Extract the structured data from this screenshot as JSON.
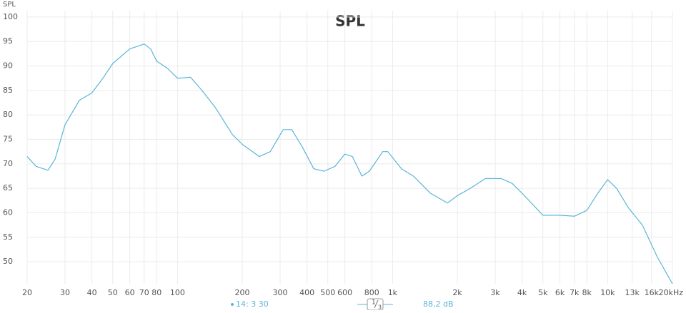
{
  "chart_data": {
    "type": "line",
    "title": "SPL",
    "y_label": "SPL",
    "x_scale": "log",
    "grid": true,
    "x": [
      20,
      22,
      25,
      27,
      30,
      35,
      40,
      45,
      50,
      60,
      65,
      70,
      75,
      80,
      90,
      100,
      115,
      130,
      150,
      180,
      200,
      240,
      270,
      310,
      340,
      380,
      430,
      480,
      540,
      600,
      650,
      720,
      780,
      900,
      950,
      1100,
      1250,
      1500,
      1800,
      2000,
      2300,
      2700,
      3200,
      3600,
      4000,
      5000,
      6000,
      7000,
      8000,
      9000,
      10000,
      11000,
      12500,
      14500,
      17000,
      20000
    ],
    "series": [
      {
        "name": "SPL",
        "color": "#5bb5d8",
        "values": [
          71.5,
          69.5,
          68.7,
          71,
          78,
          83,
          84.5,
          87.5,
          90.5,
          93.5,
          94,
          94.5,
          93.5,
          91,
          89.5,
          87.5,
          87.7,
          85,
          81.5,
          76,
          74,
          71.5,
          72.5,
          77,
          77,
          73.5,
          69,
          68.5,
          69.5,
          72,
          71.5,
          67.5,
          68.5,
          72.5,
          72.5,
          69,
          67.5,
          64,
          62,
          63.5,
          65,
          67,
          67,
          66,
          64,
          59.5,
          59.5,
          59.3,
          60.5,
          64,
          66.8,
          65,
          61,
          57.5,
          51,
          45.5
        ]
      }
    ],
    "xlim": [
      20,
      20000
    ],
    "ylim": [
      45.5,
      101.3
    ],
    "xticks": [
      20,
      30,
      40,
      50,
      60,
      70,
      80,
      100,
      200,
      300,
      400,
      500,
      600,
      800,
      {
        "value": 1000,
        "label": "1k"
      },
      {
        "value": 2000,
        "label": "2k"
      },
      {
        "value": 3000,
        "label": "3k"
      },
      {
        "value": 4000,
        "label": "4k"
      },
      {
        "value": 5000,
        "label": "5k"
      },
      {
        "value": 6000,
        "label": "6k"
      },
      {
        "value": 7000,
        "label": "7k"
      },
      {
        "value": 8000,
        "label": "8k"
      },
      {
        "value": 10000,
        "label": "10k"
      },
      {
        "value": 13000,
        "label": "13k"
      },
      {
        "value": 16000,
        "label": "16k"
      },
      {
        "value": 20000,
        "label": "20kHz"
      }
    ],
    "yticks": [
      50,
      55,
      60,
      65,
      70,
      75,
      80,
      85,
      90,
      95,
      100
    ]
  },
  "footer": {
    "position": "14: 3 30",
    "smoothing_numerator": "1",
    "smoothing_denominator": "3",
    "level": "88,2 dB"
  }
}
